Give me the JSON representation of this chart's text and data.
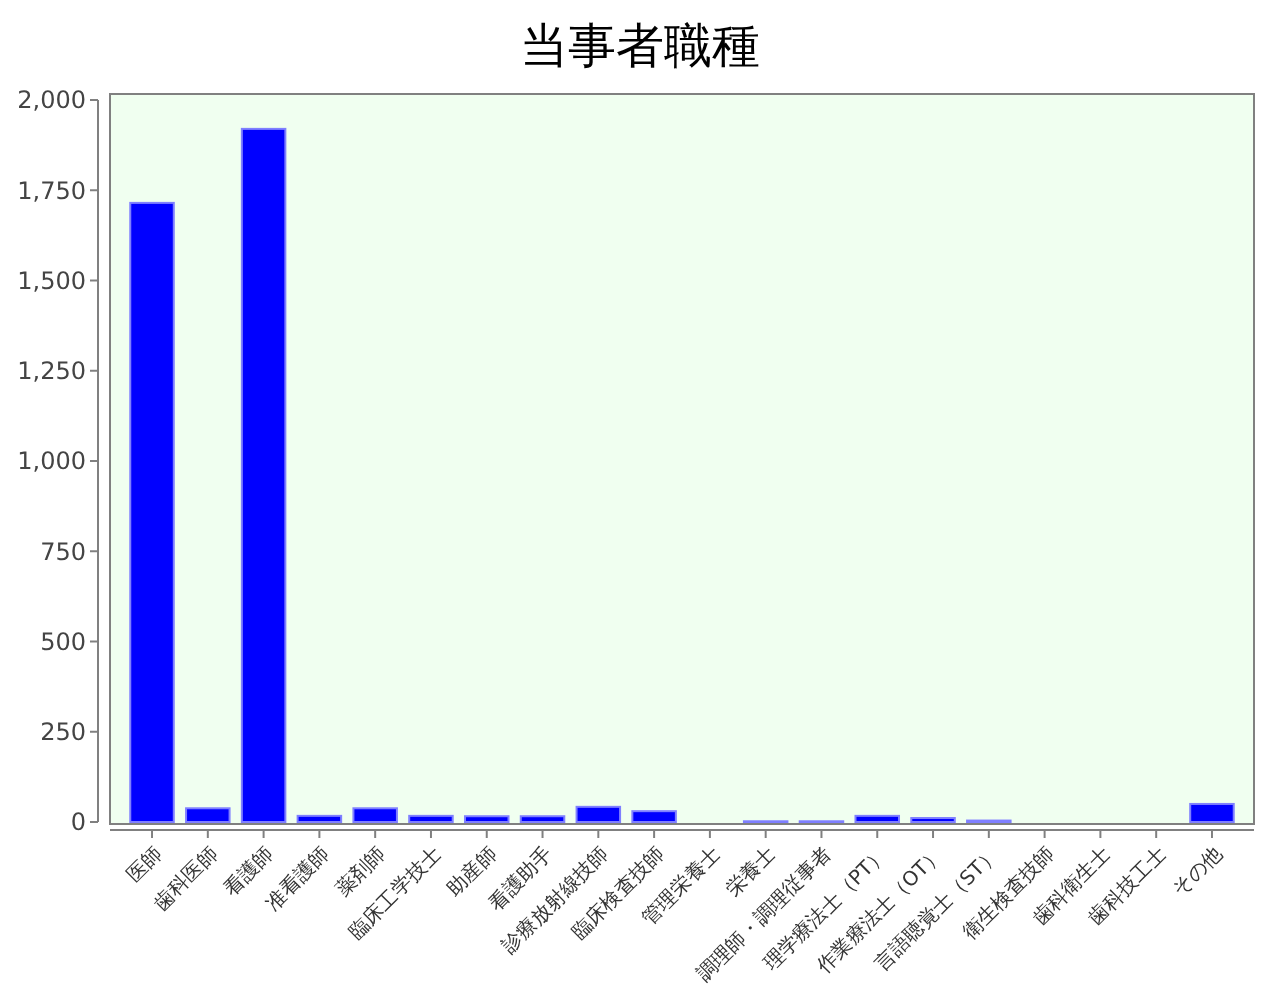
{
  "chart_data": {
    "type": "bar",
    "title": "当事者職種",
    "categories": [
      "医師",
      "歯科医師",
      "看護師",
      "准看護師",
      "薬剤師",
      "臨床工学技士",
      "助産師",
      "看護助手",
      "診療放射線技師",
      "臨床検査技師",
      "管理栄養士",
      "栄養士",
      "調理師・調理従事者",
      "理学療法士（PT）",
      "作業療法士（OT）",
      "言語聴覚士（ST）",
      "衛生検査技師",
      "歯科衛生士",
      "歯科技工士",
      "その他"
    ],
    "values": [
      1715,
      38,
      1920,
      17,
      38,
      17,
      16,
      16,
      42,
      30,
      0,
      2,
      2,
      17,
      11,
      4,
      0,
      0,
      0,
      50
    ],
    "color": "#0000ff",
    "ylim": [
      0,
      2000
    ],
    "yticks": [
      {
        "value": 0,
        "label": "0"
      },
      {
        "value": 250,
        "label": "250"
      },
      {
        "value": 500,
        "label": "500"
      },
      {
        "value": 750,
        "label": "750"
      },
      {
        "value": 1000,
        "label": "1,000"
      },
      {
        "value": 1250,
        "label": "1,250"
      },
      {
        "value": 1500,
        "label": "1,500"
      },
      {
        "value": 1750,
        "label": "1,750"
      },
      {
        "value": 2000,
        "label": "2,000"
      }
    ],
    "grid": false
  }
}
